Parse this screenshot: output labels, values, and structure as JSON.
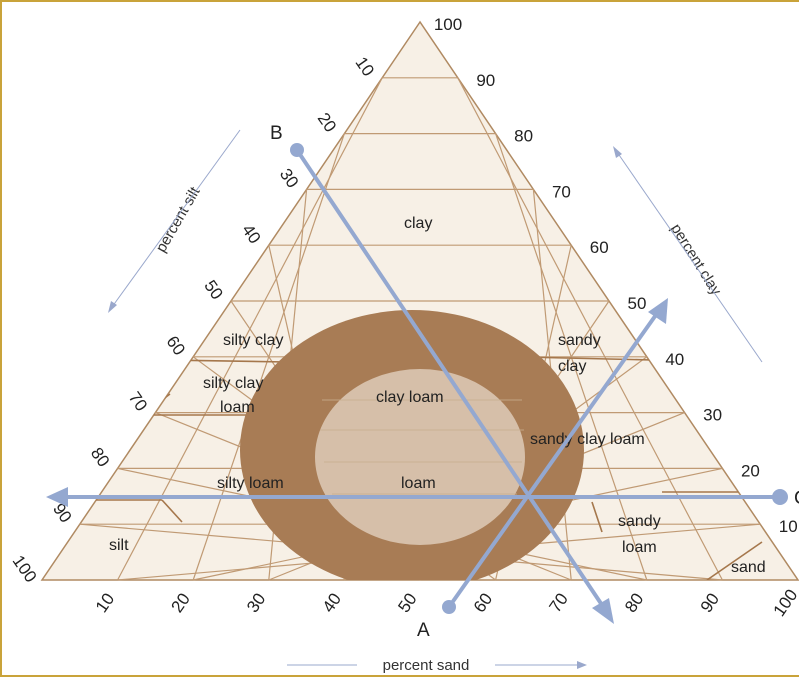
{
  "diagram": {
    "clay_ticks": [
      "10",
      "20",
      "30",
      "40",
      "50",
      "60",
      "70",
      "80",
      "90",
      "100"
    ],
    "silt_ticks": [
      "10",
      "20",
      "30",
      "40",
      "50",
      "60",
      "70",
      "80",
      "90",
      "100"
    ],
    "sand_ticks": [
      "10",
      "20",
      "30",
      "40",
      "50",
      "60",
      "70",
      "80",
      "90",
      "100"
    ],
    "axis_titles": {
      "silt": "percent silt",
      "clay": "percent clay",
      "sand": "percent sand"
    },
    "zones": {
      "clay": "clay",
      "silty_clay": "silty clay",
      "sandy_clay_1": "sandy",
      "sandy_clay_2": "clay",
      "silty_clay_loam_1": "silty clay",
      "silty_clay_loam_2": "loam",
      "clay_loam": "clay loam",
      "sandy_clay_loam": "sandy clay loam",
      "silty_loam": "silty loam",
      "loam": "loam",
      "sandy_loam_1": "sandy",
      "sandy_loam_2": "loam",
      "silt": "silt",
      "sand": "sand"
    },
    "pointer_labels": {
      "a": "A",
      "b": "B",
      "c": "C"
    },
    "colors": {
      "triangle_fill": "#f7f0e6",
      "grid": "#c09a74",
      "boundary": "#a5774c",
      "outer_ring": "#a87c55",
      "inner_circle": "#d6bfa9",
      "pointer": "#94a8d0"
    }
  }
}
